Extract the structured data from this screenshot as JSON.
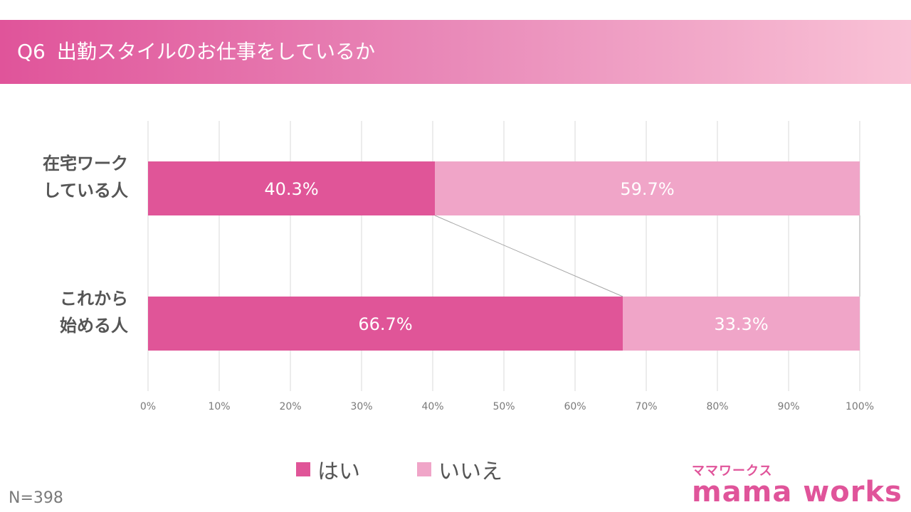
{
  "header": {
    "question": "Q6",
    "title": "出勤スタイルのお仕事をしているか"
  },
  "chart_data": {
    "type": "bar",
    "orientation": "horizontal",
    "stacked": "100%",
    "categories": [
      [
        "在宅ワーク",
        "している人"
      ],
      [
        "これから",
        "始める人"
      ]
    ],
    "series": [
      {
        "name": "はい",
        "values": [
          40.3,
          66.7
        ],
        "labels": [
          "40.3%",
          "66.7%"
        ],
        "color": "#e05598"
      },
      {
        "name": "いいえ",
        "values": [
          59.7,
          33.3
        ],
        "labels": [
          "59.7%",
          "33.3%"
        ],
        "color": "#f0a5c8"
      }
    ],
    "xlim": [
      0,
      100
    ],
    "ticks": [
      "0%",
      "10%",
      "20%",
      "30%",
      "40%",
      "50%",
      "60%",
      "70%",
      "80%",
      "90%",
      "100%"
    ],
    "grid": true,
    "series_lines": true,
    "legend_position": "bottom"
  },
  "footer": {
    "n": "N=398"
  },
  "logo": {
    "kana": "ママワークス",
    "name": "mama works"
  }
}
